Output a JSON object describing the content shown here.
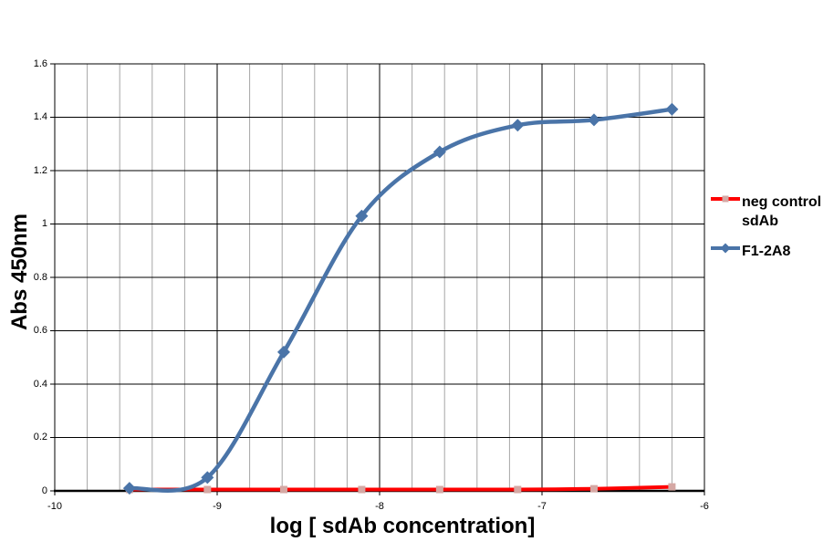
{
  "chart_data": {
    "type": "line",
    "title": "",
    "xlabel": "log [ sdAb concentration]",
    "ylabel": "Abs 450nm",
    "xlim": [
      -10,
      -6
    ],
    "ylim": [
      0,
      1.6
    ],
    "x_major_step": 1,
    "x_minor_step": 0.2,
    "y_step": 0.2,
    "grid": "x-minor-gray, x-major-black, y-major-black",
    "legend_position": "right",
    "x_ticks": [
      "-10",
      "-9",
      "-8",
      "-7",
      "-6"
    ],
    "x_tick_values": [
      -10,
      -9,
      -8,
      -7,
      -6
    ],
    "y_ticks": [
      "0",
      "0.2",
      "0.4",
      "0.6",
      "0.8",
      "1",
      "1.2",
      "1.4",
      "1.6"
    ],
    "y_tick_values": [
      0,
      0.2,
      0.4,
      0.6,
      0.8,
      1,
      1.2,
      1.4,
      1.6
    ],
    "series": [
      {
        "name": "neg control sdAb",
        "color": "#ff0000",
        "marker": "square",
        "marker_color": "#d5a8a4",
        "x": [
          -9.54,
          -9.06,
          -8.59,
          -8.11,
          -7.63,
          -7.15,
          -6.68,
          -6.2
        ],
        "y": [
          0.005,
          0.005,
          0.005,
          0.005,
          0.005,
          0.005,
          0.008,
          0.015
        ]
      },
      {
        "name": "F1-2A8",
        "color": "#4a74a8",
        "marker": "diamond",
        "marker_color": "#4a74a8",
        "x": [
          -9.54,
          -9.06,
          -8.59,
          -8.11,
          -7.63,
          -7.15,
          -6.68,
          -6.2
        ],
        "y": [
          0.01,
          0.05,
          0.52,
          1.03,
          1.27,
          1.37,
          1.39,
          1.43
        ]
      }
    ],
    "colors": {
      "axis": "#000000",
      "major_grid": "#000000",
      "minor_grid": "#a6a6a6",
      "background": "#ffffff"
    }
  }
}
